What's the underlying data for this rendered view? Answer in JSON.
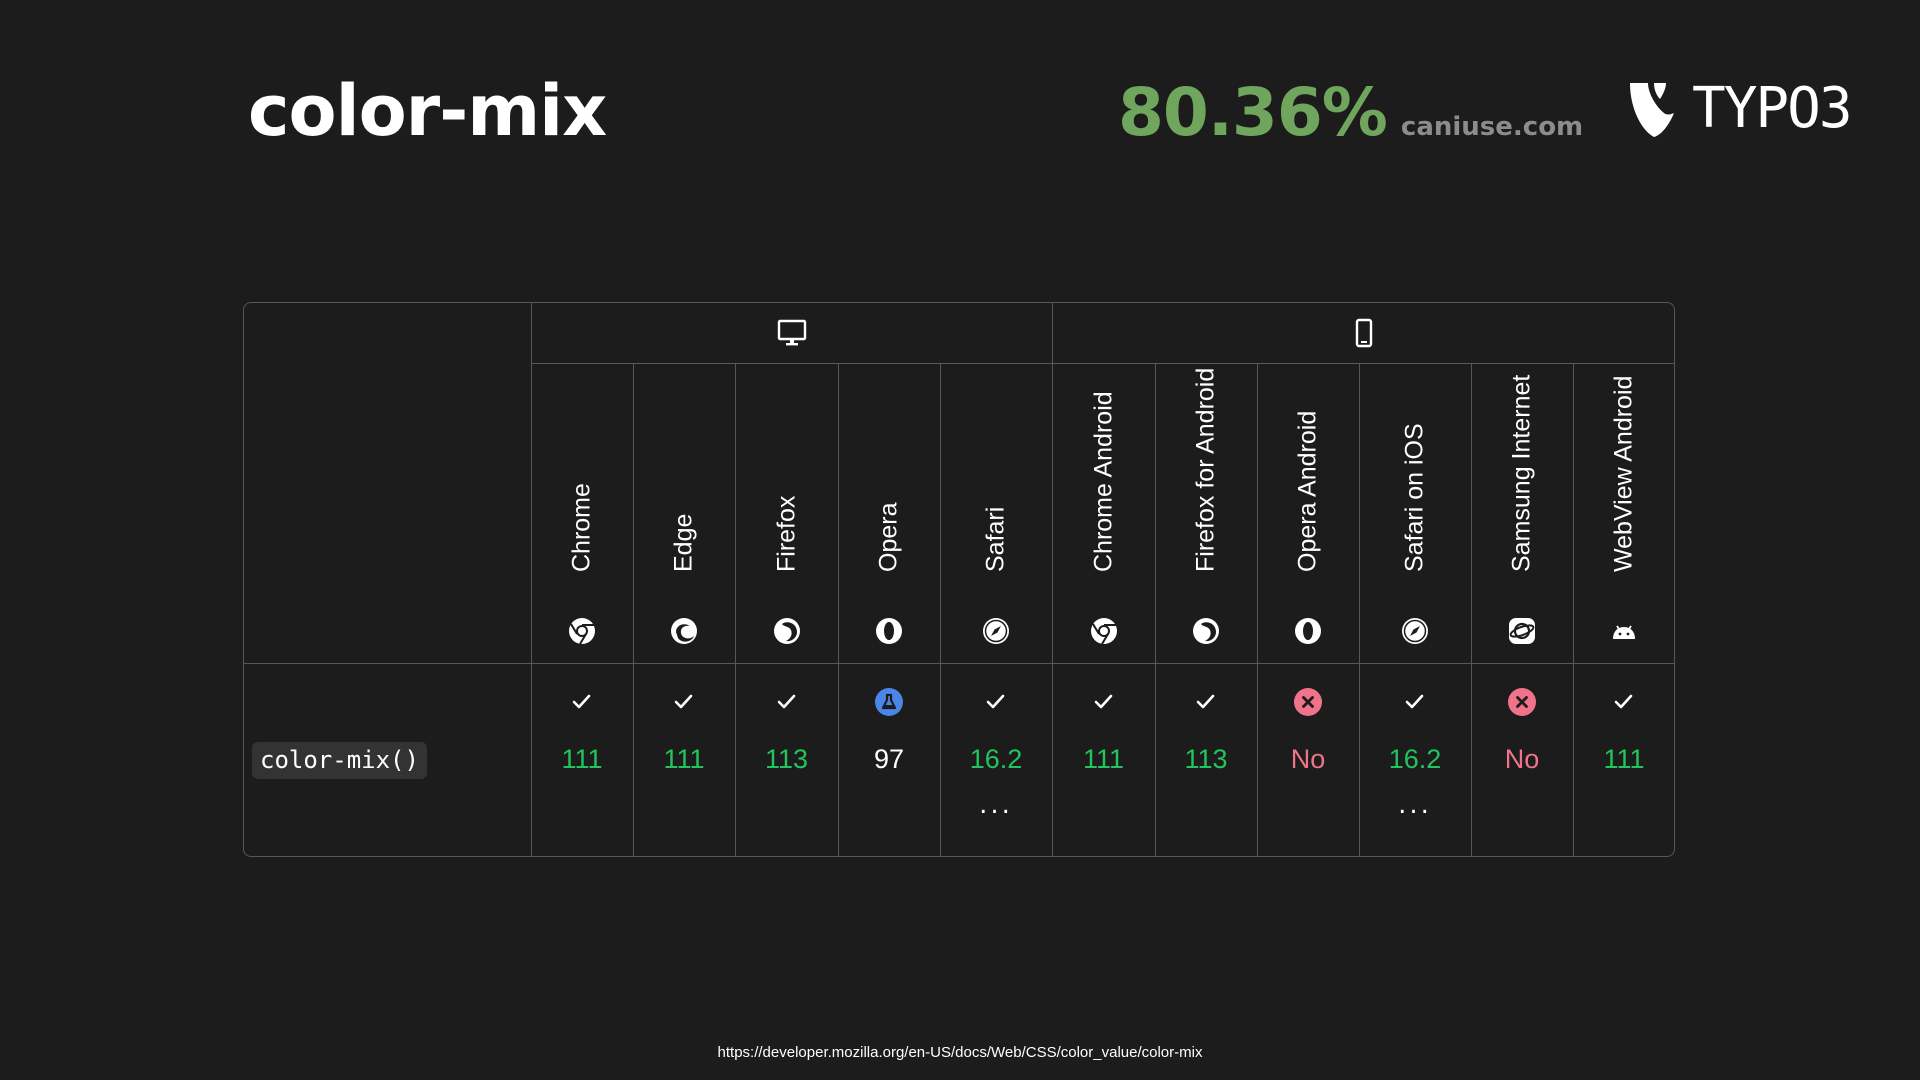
{
  "slide": {
    "title": "color-mix",
    "support_percent": "80.36%",
    "support_source": "caniuse.com",
    "logo_text": "TYPO3",
    "footer_url": "https://developer.mozilla.org/en-US/docs/Web/CSS/color_value/color-mix"
  },
  "compat_table": {
    "platforms": [
      {
        "name": "desktop",
        "icon": "desktop-monitor-icon"
      },
      {
        "name": "mobile",
        "icon": "mobile-phone-icon"
      }
    ],
    "feature": "color-mix()",
    "browsers": [
      {
        "name": "Chrome",
        "icon": "chrome-icon",
        "status": "yes",
        "version": "111",
        "more": ""
      },
      {
        "name": "Edge",
        "icon": "edge-icon",
        "status": "yes",
        "version": "111",
        "more": ""
      },
      {
        "name": "Firefox",
        "icon": "firefox-icon",
        "status": "yes",
        "version": "113",
        "more": ""
      },
      {
        "name": "Opera",
        "icon": "opera-icon",
        "status": "experimental",
        "version": "97",
        "more": ""
      },
      {
        "name": "Safari",
        "icon": "safari-icon",
        "status": "yes",
        "version": "16.2",
        "more": "..."
      },
      {
        "name": "Chrome Android",
        "icon": "chrome-icon",
        "status": "yes",
        "version": "111",
        "more": ""
      },
      {
        "name": "Firefox for Android",
        "icon": "firefox-icon",
        "status": "yes",
        "version": "113",
        "more": ""
      },
      {
        "name": "Opera Android",
        "icon": "opera-icon",
        "status": "no",
        "version": "No",
        "more": ""
      },
      {
        "name": "Safari on iOS",
        "icon": "safari-icon",
        "status": "yes",
        "version": "16.2",
        "more": "..."
      },
      {
        "name": "Samsung Internet",
        "icon": "samsung-internet-icon",
        "status": "no",
        "version": "No",
        "more": ""
      },
      {
        "name": "WebView Android",
        "icon": "android-icon",
        "status": "yes",
        "version": "111",
        "more": ""
      }
    ]
  },
  "colors": {
    "background": "#1c1c1c",
    "support_percent": "#6fa55c",
    "yes": "#21c45d",
    "no": "#f0738a",
    "experimental": "#4a86e8",
    "border": "#575757"
  }
}
